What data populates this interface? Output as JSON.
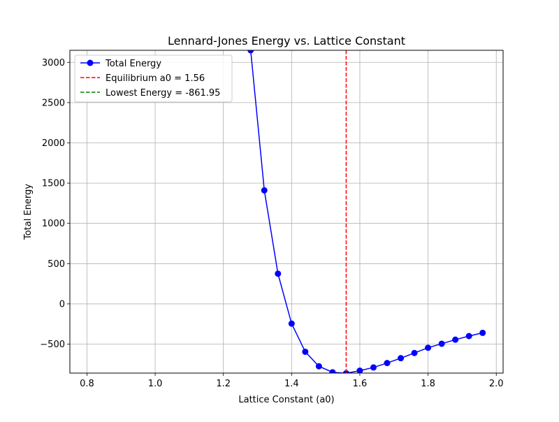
{
  "chart_data": {
    "type": "line",
    "title": "Lennard-Jones Energy vs. Lattice Constant",
    "xlabel": "Lattice Constant (a0)",
    "ylabel": "Total Energy",
    "xlim": [
      0.75,
      2.02
    ],
    "ylim": [
      -860,
      3150
    ],
    "grid": true,
    "legend_position": "top-left",
    "xticks": [
      0.8,
      1.0,
      1.2,
      1.4,
      1.6,
      1.8,
      2.0
    ],
    "xtick_labels": [
      "0.8",
      "1.0",
      "1.2",
      "1.4",
      "1.6",
      "1.8",
      "2.0"
    ],
    "yticks": [
      -500,
      0,
      500,
      1000,
      1500,
      2000,
      2500,
      3000
    ],
    "ytick_labels": [
      "−500",
      "0",
      "500",
      "1000",
      "1500",
      "2000",
      "2500",
      "3000"
    ],
    "series": [
      {
        "name": "Total Energy",
        "color": "#0000ff",
        "marker": "circle",
        "x": [
          1.28,
          1.32,
          1.36,
          1.4,
          1.44,
          1.48,
          1.52,
          1.56,
          1.6,
          1.64,
          1.68,
          1.72,
          1.76,
          1.8,
          1.84,
          1.88,
          1.92,
          1.96
        ],
        "y": [
          3150,
          1410,
          375,
          -245,
          -595,
          -775,
          -850,
          -862,
          -830,
          -790,
          -735,
          -675,
          -610,
          -545,
          -495,
          -445,
          -400,
          -360
        ]
      }
    ],
    "reference_lines": [
      {
        "name": "Equilibrium a0 = 1.56",
        "orientation": "vertical",
        "value": 1.56,
        "color": "#ff0000",
        "style": "dashed"
      },
      {
        "name": "Lowest Energy = -861.95",
        "orientation": "horizontal",
        "value": -861.95,
        "color": "#008000",
        "style": "dashed"
      }
    ]
  }
}
